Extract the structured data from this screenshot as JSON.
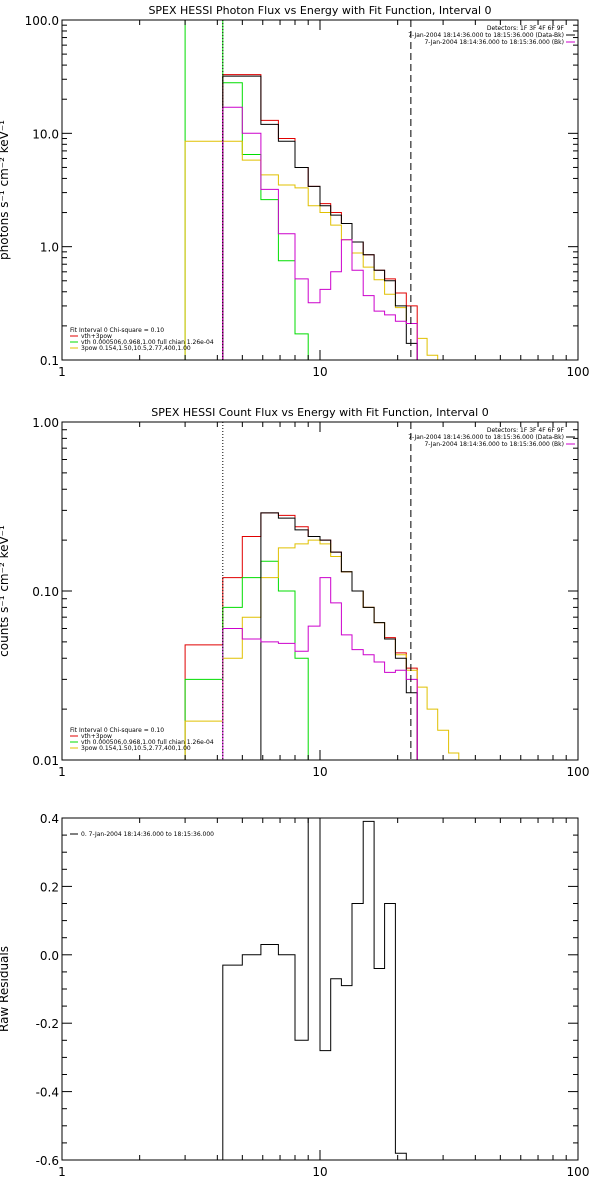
{
  "chart_data": [
    {
      "type": "line",
      "title": "SPEX HESSI Photon Flux vs Energy with Fit Function, Interval 0",
      "ylabel": "photons s⁻¹ cm⁻² keV⁻¹",
      "xlabel": "",
      "xscale": "log",
      "yscale": "log",
      "xlim": [
        1,
        100
      ],
      "ylim": [
        0.1,
        100
      ],
      "xtick_labels": [
        "1",
        "10",
        "100"
      ],
      "ytick_labels": [
        "0.1",
        "1.0",
        "10.0",
        "100.0"
      ],
      "ytick_values": [
        0.1,
        1,
        10,
        100
      ],
      "vlines": [
        {
          "x": 4.2,
          "style": "dotted",
          "color": "#000000"
        },
        {
          "x": 22.5,
          "style": "dashed",
          "color": "#000000"
        }
      ],
      "header": [
        "Detectors: 1F 3F 4F 6F 9F",
        "7-Jan-2004 18:14:36.000 to 18:15:36.000 (Data-Bk)",
        "7-Jan-2004 18:14:36.000 to 18:15:36.000 (Bk)"
      ],
      "header_colors": [
        "#000000",
        "#000000",
        "#cc00cc"
      ],
      "legend": [
        "Fit Interval 0   Chi-square = 0.10",
        "vth+3pow",
        "vth 0.000506,0.968,1.00  full chian 1.26e-04",
        "3pow 0.154,1.50,10.5,2.77,400,1.00"
      ],
      "legend_colors": [
        "#000000",
        "#e00000",
        "#00dd00",
        "#e0c000"
      ],
      "series": [
        {
          "color": "#e00000",
          "edges": [
            4.2,
            5.0,
            5.9,
            6.9,
            8.0,
            9.0,
            10.0,
            11.0,
            12.1,
            13.3,
            14.7,
            16.2,
            17.8,
            19.6,
            21.6,
            23.8
          ],
          "values": [
            33,
            33,
            13,
            9,
            5.0,
            3.4,
            2.4,
            2.0,
            1.6,
            1.1,
            0.85,
            0.62,
            0.52,
            0.39,
            0.3
          ]
        },
        {
          "color": "#00dd00",
          "edges": [
            3.0,
            4.2,
            5.0,
            5.9,
            6.9,
            8.0,
            9.0
          ],
          "values": [
            100,
            28,
            6.5,
            2.6,
            0.75,
            0.17
          ]
        },
        {
          "color": "#e0c000",
          "edges": [
            3.0,
            4.2,
            5.0,
            5.9,
            6.9,
            8.0,
            9.0,
            10.0,
            11.0,
            12.1,
            13.3,
            14.7,
            16.2,
            17.8,
            19.6,
            21.6,
            23.8,
            26.0,
            28.6
          ],
          "values": [
            8.5,
            8.5,
            5.8,
            4.3,
            3.5,
            3.3,
            2.3,
            2.0,
            1.55,
            1.15,
            0.88,
            0.66,
            0.51,
            0.38,
            0.29,
            0.21,
            0.155,
            0.11
          ]
        },
        {
          "color": "#000000",
          "edges": [
            4.2,
            5.0,
            5.9,
            6.9,
            8.0,
            9.0,
            10.0,
            11.0,
            12.1,
            13.3,
            14.7,
            16.2,
            17.8,
            19.6,
            21.6,
            23.8
          ],
          "values": [
            32,
            32,
            12,
            8.5,
            5.0,
            3.4,
            2.3,
            1.9,
            1.6,
            1.1,
            0.85,
            0.62,
            0.5,
            0.3,
            0.14
          ]
        },
        {
          "color": "#cc00cc",
          "edges": [
            4.2,
            5.0,
            5.9,
            6.9,
            8.0,
            9.0,
            10.0,
            11.0,
            12.1,
            13.3,
            14.7,
            16.2,
            17.8,
            19.6,
            21.6,
            23.8
          ],
          "values": [
            17,
            10,
            3.2,
            1.3,
            0.52,
            0.32,
            0.42,
            0.6,
            1.15,
            0.62,
            0.37,
            0.27,
            0.25,
            0.22,
            0.21
          ]
        }
      ]
    },
    {
      "type": "line",
      "title": "SPEX HESSI Count Flux vs Energy with Fit Function, Interval 0",
      "ylabel": "counts s⁻¹ cm⁻² keV⁻¹",
      "xlabel": "",
      "xscale": "log",
      "yscale": "log",
      "xlim": [
        1,
        100
      ],
      "ylim": [
        0.01,
        1
      ],
      "xtick_labels": [
        "1",
        "10",
        "100"
      ],
      "ytick_labels": [
        "0.01",
        "0.10",
        "1.00"
      ],
      "ytick_values": [
        0.01,
        0.1,
        1
      ],
      "vlines": [
        {
          "x": 4.2,
          "style": "dotted",
          "color": "#000000"
        },
        {
          "x": 22.5,
          "style": "dashed",
          "color": "#000000"
        }
      ],
      "header": [
        "Detectors: 1F 3F 4F 6F 9F",
        "7-Jan-2004 18:14:36.000 to 18:15:36.000 (Data-Bk)",
        "7-Jan-2004 18:14:36.000 to 18:15:36.000 (Bk)"
      ],
      "header_colors": [
        "#000000",
        "#000000",
        "#cc00cc"
      ],
      "legend": [
        "Fit Interval 0   Chi-square = 0.10",
        "vth+3pow",
        "vth 0.000506,0.968,1.00  full chian 1.26e-04",
        "3pow 0.154,1.50,10.5,2.77,400,1.00"
      ],
      "legend_colors": [
        "#000000",
        "#e00000",
        "#00dd00",
        "#e0c000"
      ],
      "series": [
        {
          "color": "#e00000",
          "edges": [
            3.0,
            4.2,
            5.0,
            5.9,
            6.9,
            8.0,
            9.0,
            10.0,
            11.0,
            12.1,
            13.3,
            14.7,
            16.2,
            17.8,
            19.6,
            21.6,
            23.8
          ],
          "values": [
            0.048,
            0.12,
            0.21,
            0.29,
            0.28,
            0.24,
            0.21,
            0.2,
            0.17,
            0.13,
            0.1,
            0.08,
            0.065,
            0.053,
            0.043,
            0.035
          ]
        },
        {
          "color": "#00dd00",
          "edges": [
            3.0,
            4.2,
            5.0,
            5.9,
            6.9,
            8.0,
            9.0,
            10.0
          ],
          "values": [
            0.03,
            0.08,
            0.12,
            0.15,
            0.1,
            0.04,
            0.01
          ]
        },
        {
          "color": "#e0c000",
          "edges": [
            3.0,
            4.2,
            5.0,
            5.9,
            6.9,
            8.0,
            9.0,
            10.0,
            11.0,
            12.1,
            13.3,
            14.7,
            16.2,
            17.8,
            19.6,
            21.6,
            23.8,
            26.0,
            28.6,
            31.5,
            34.5
          ],
          "values": [
            0.017,
            0.04,
            0.07,
            0.12,
            0.18,
            0.19,
            0.2,
            0.19,
            0.16,
            0.13,
            0.1,
            0.08,
            0.065,
            0.052,
            0.042,
            0.034,
            0.027,
            0.02,
            0.015,
            0.011
          ]
        },
        {
          "color": "#000000",
          "edges": [
            5.9,
            6.9,
            8.0,
            9.0,
            10.0,
            11.0,
            12.1,
            13.3,
            14.7,
            16.2,
            17.8,
            19.6,
            21.6,
            23.8
          ],
          "values": [
            0.29,
            0.27,
            0.23,
            0.21,
            0.2,
            0.17,
            0.13,
            0.1,
            0.08,
            0.065,
            0.052,
            0.04,
            0.025
          ]
        },
        {
          "color": "#cc00cc",
          "edges": [
            4.2,
            5.0,
            5.9,
            6.9,
            8.0,
            9.0,
            10.0,
            11.0,
            12.1,
            13.3,
            14.7,
            16.2,
            17.8,
            19.6,
            21.6,
            23.8
          ],
          "values": [
            0.06,
            0.052,
            0.05,
            0.049,
            0.044,
            0.062,
            0.12,
            0.085,
            0.055,
            0.045,
            0.042,
            0.038,
            0.033,
            0.034,
            0.03
          ]
        }
      ]
    },
    {
      "type": "line",
      "title": "",
      "ylabel": "Raw Residuals",
      "xlabel": "",
      "xscale": "log",
      "yscale": "linear",
      "xlim": [
        1,
        100
      ],
      "ylim": [
        -0.6,
        0.4
      ],
      "xtick_labels": [
        "1",
        "10",
        "100"
      ],
      "ytick_labels": [
        "-0.6",
        "-0.4",
        "-0.2",
        "0.0",
        "0.2",
        "0.4"
      ],
      "ytick_values": [
        -0.6,
        -0.4,
        -0.2,
        0.0,
        0.2,
        0.4
      ],
      "legend": [
        "0.  7-Jan-2004 18:14:36.000 to 18:15:36.000"
      ],
      "legend_colors": [
        "#000000"
      ],
      "series": [
        {
          "color": "#000000",
          "edges": [
            4.2,
            5.0,
            5.9,
            6.9,
            8.0,
            9.0,
            10.0,
            11.0,
            12.1,
            13.3,
            14.7,
            16.2,
            17.8,
            19.6,
            21.6
          ],
          "values": [
            -0.03,
            0.0,
            0.03,
            0.0,
            -0.25,
            0.4,
            -0.28,
            -0.07,
            -0.09,
            0.15,
            0.39,
            -0.04,
            0.15,
            -0.58
          ],
          "start_value": -0.6
        }
      ]
    }
  ]
}
